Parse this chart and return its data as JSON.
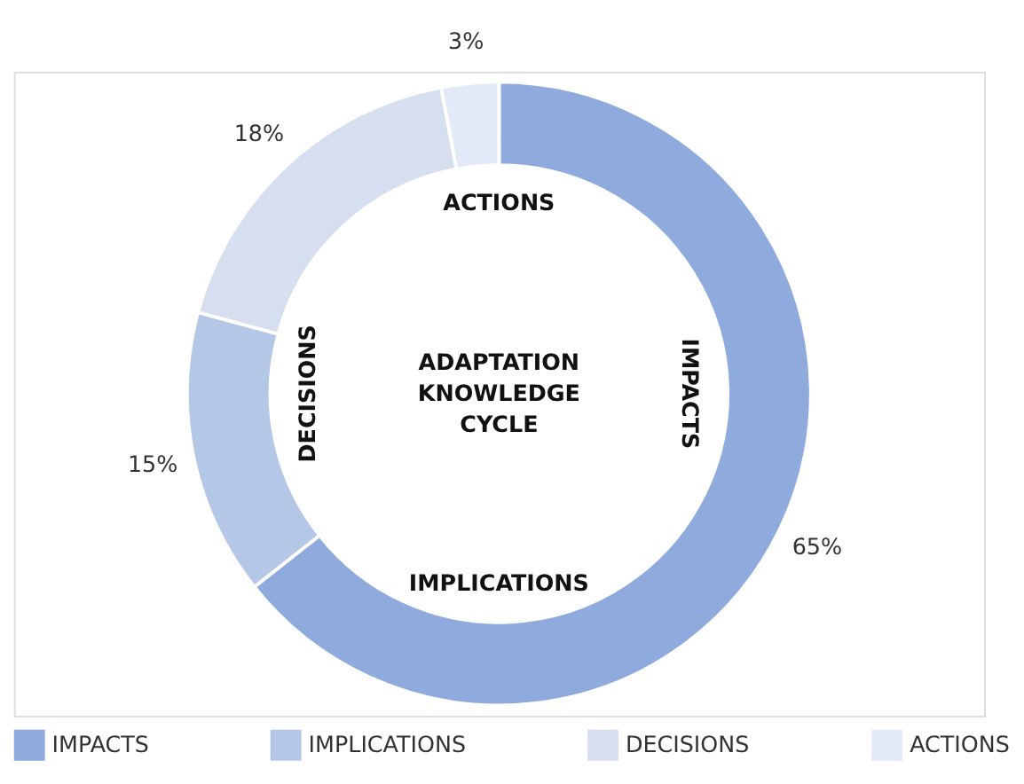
{
  "chart_data": {
    "type": "donut",
    "categories": [
      "IMPACTS",
      "IMPLICATIONS",
      "DECISIONS",
      "ACTIONS"
    ],
    "values": [
      65,
      15,
      18,
      3
    ],
    "colors": [
      "#8faadc",
      "#b4c7e7",
      "#d6dff0",
      "#e2eaf7"
    ],
    "value_labels": [
      "65%",
      "15%",
      "18%",
      "3%"
    ],
    "legend": "bottom",
    "annotations": [
      "IMPACTS",
      "IMPLICATIONS",
      "DECISIONS",
      "ACTIONS",
      "ADAPTATION KNOWLEDGE CYCLE"
    ]
  }
}
